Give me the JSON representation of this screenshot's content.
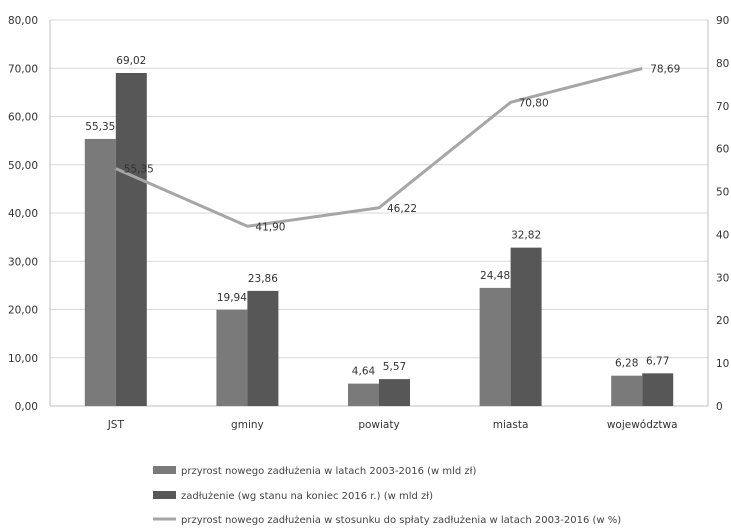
{
  "chart_data": {
    "type": "bar",
    "categories": [
      "JST",
      "gminy",
      "powiaty",
      "miasta",
      "województwa"
    ],
    "series": [
      {
        "name": "przyrost nowego zadłużenia w latach 2003-2016 (w mld zł)",
        "type": "bar",
        "axis": "left",
        "values": [
          55.35,
          19.94,
          4.64,
          24.48,
          6.28
        ],
        "labels": [
          "55,35",
          "19,94",
          "4,64",
          "24,48",
          "6,28"
        ],
        "color": "#7a7a7a"
      },
      {
        "name": "zadłużenie (wg stanu na koniec 2016 r.) (w mld zł)",
        "type": "bar",
        "axis": "left",
        "values": [
          69.02,
          23.86,
          5.57,
          32.82,
          6.77
        ],
        "labels": [
          "69,02",
          "23,86",
          "5,57",
          "32,82",
          "6,77"
        ],
        "color": "#575757"
      },
      {
        "name": "przyrost nowego zadłużenia w stosunku do spłaty zadłużenia w latach 2003-2016 (w %)",
        "type": "line",
        "axis": "right",
        "values": [
          55.35,
          41.9,
          46.22,
          70.8,
          78.69
        ],
        "labels": [
          "55,35",
          "41,90",
          "46,22",
          "70,80",
          "78,69"
        ],
        "color": "#a6a6a6"
      }
    ],
    "y_left": {
      "range": [
        0,
        80
      ],
      "ticks": [
        "0,00",
        "10,00",
        "20,00",
        "30,00",
        "40,00",
        "50,00",
        "60,00",
        "70,00",
        "80,00"
      ]
    },
    "y_right": {
      "range": [
        0,
        90
      ],
      "ticks": [
        "0",
        "10",
        "20",
        "30",
        "40",
        "50",
        "60",
        "70",
        "80",
        "90"
      ]
    },
    "grid": true,
    "legend_position": "bottom"
  }
}
